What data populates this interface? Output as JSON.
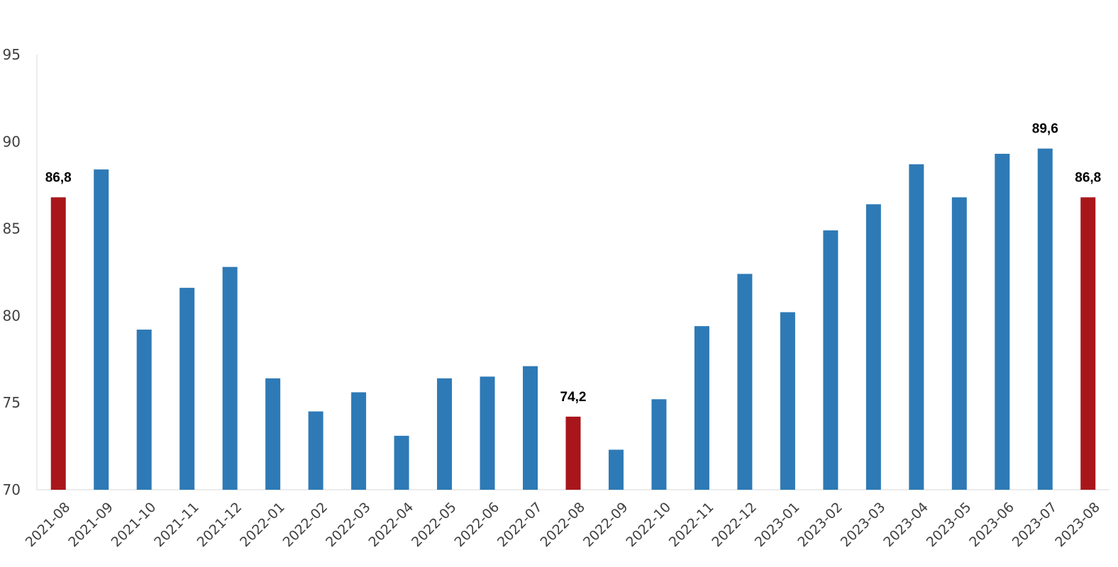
{
  "chart_data": {
    "type": "bar",
    "title": "",
    "xlabel": "",
    "ylabel": "",
    "ylim": [
      70,
      95
    ],
    "yticks": [
      70,
      75,
      80,
      85,
      90,
      95
    ],
    "grid": false,
    "categories": [
      "2021-08",
      "2021-09",
      "2021-10",
      "2021-11",
      "2021-12",
      "2022-01",
      "2022-02",
      "2022-03",
      "2022-04",
      "2022-05",
      "2022-06",
      "2022-07",
      "2022-08",
      "2022-09",
      "2022-10",
      "2022-11",
      "2022-12",
      "2023-01",
      "2023-02",
      "2023-03",
      "2023-04",
      "2023-05",
      "2023-06",
      "2023-07",
      "2023-08"
    ],
    "values": [
      86.8,
      88.4,
      79.2,
      81.6,
      82.8,
      76.4,
      74.5,
      75.6,
      73.1,
      76.4,
      76.5,
      77.1,
      74.2,
      72.3,
      75.2,
      79.4,
      82.4,
      80.2,
      84.9,
      86.4,
      88.7,
      86.8,
      89.3,
      89.6,
      86.8
    ],
    "colors": {
      "default": "#2e7ab6",
      "highlight": "#a8161b"
    },
    "highlighted": [
      "2021-08",
      "2022-08",
      "2023-08"
    ],
    "data_labels": [
      {
        "category": "2021-08",
        "text": "86,8"
      },
      {
        "category": "2022-08",
        "text": "74,2"
      },
      {
        "category": "2023-07",
        "text": "89,6"
      },
      {
        "category": "2023-08",
        "text": "86,8"
      }
    ]
  }
}
